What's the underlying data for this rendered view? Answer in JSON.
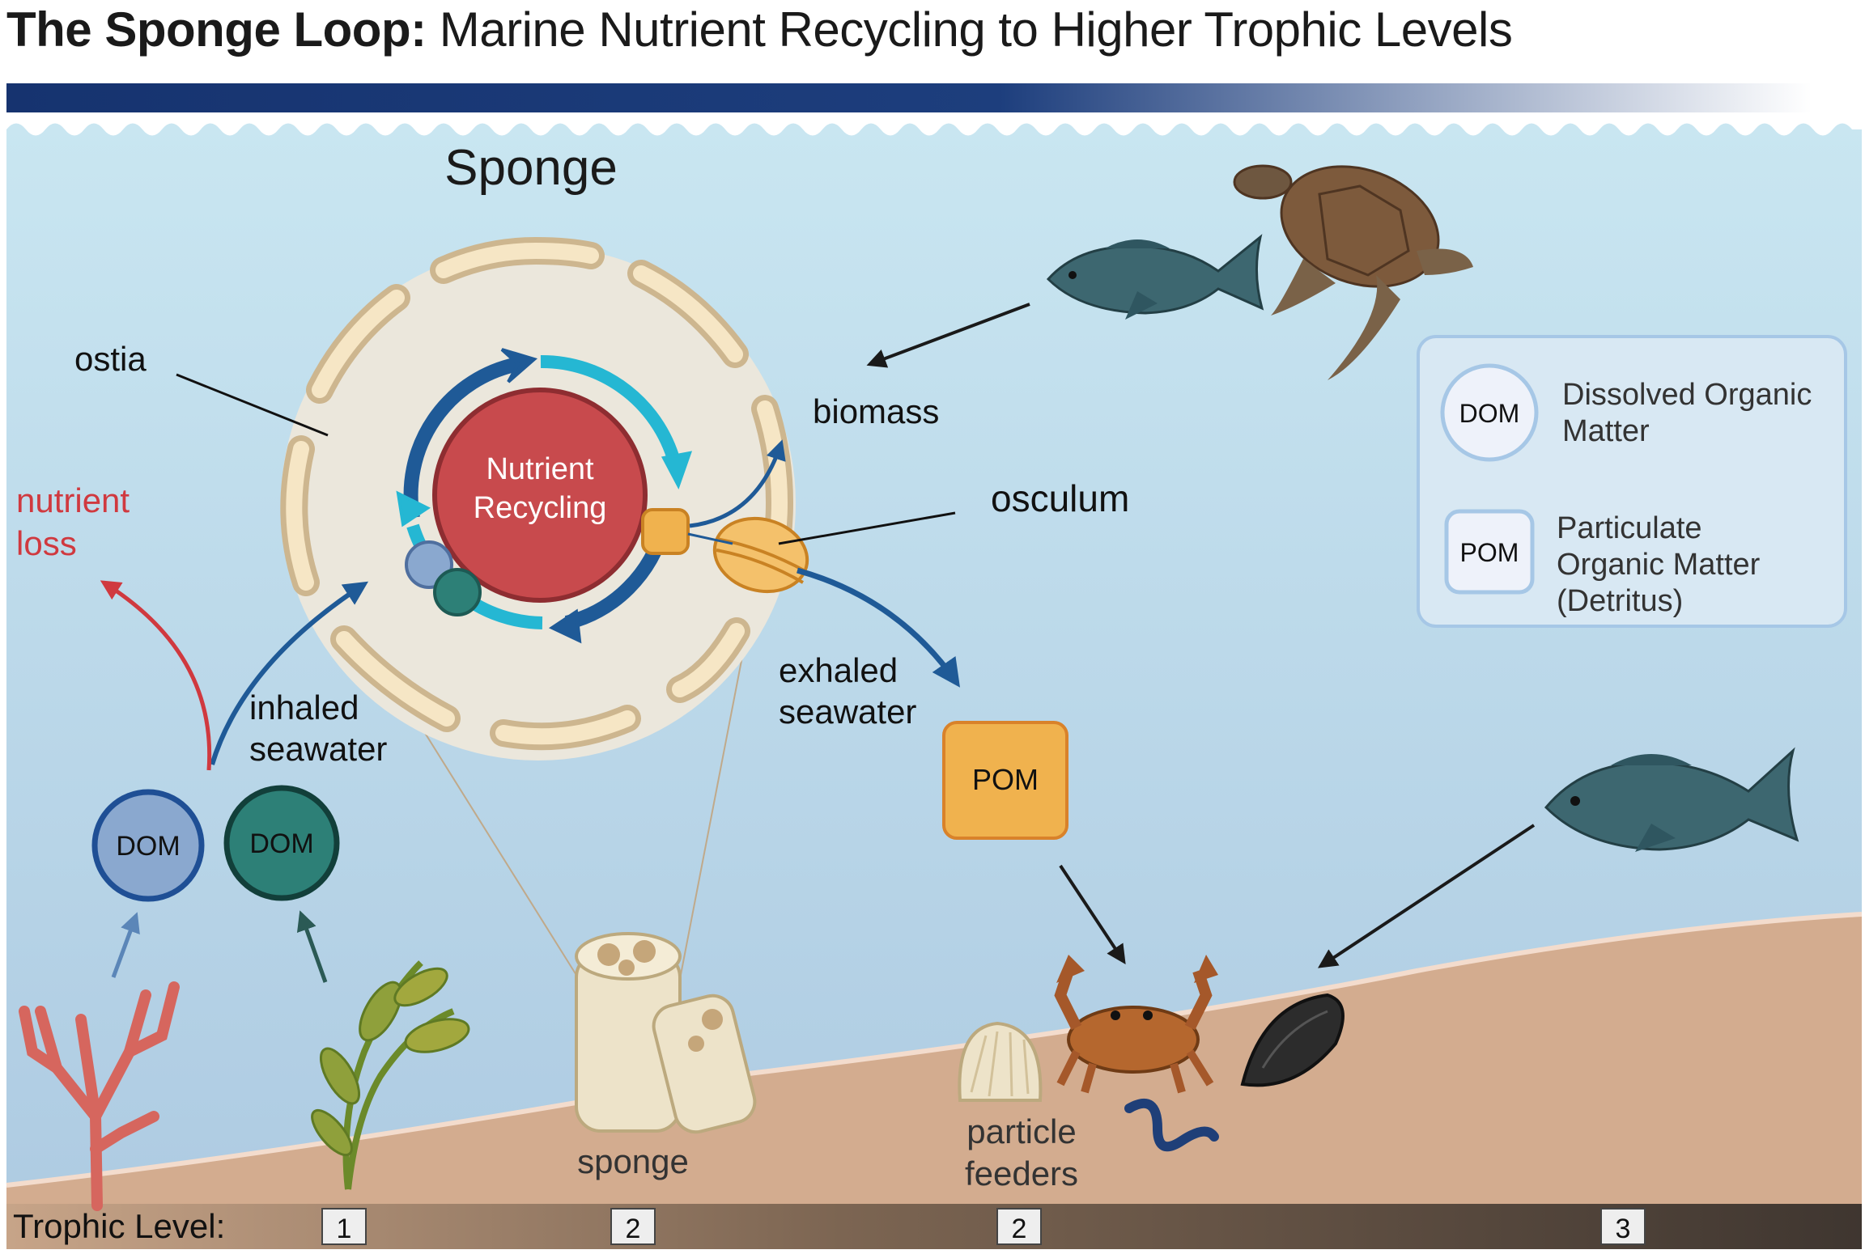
{
  "title": {
    "bold": "The Sponge Loop:",
    "rest": " Marine Nutrient Recycling to Higher Trophic Levels"
  },
  "sponge_diagram": {
    "heading": "Sponge",
    "center_line1": "Nutrient",
    "center_line2": "Recycling",
    "label_ostia": "ostia",
    "label_biomass": "biomass",
    "label_osculum": "osculum",
    "label_exhaled1": "exhaled",
    "label_exhaled2": "seawater",
    "label_inhaled1": "inhaled",
    "label_inhaled2": "seawater",
    "label_loss1": "nutrient",
    "label_loss2": "loss"
  },
  "nodes": {
    "dom_left": "DOM",
    "dom_right": "DOM",
    "pom": "POM"
  },
  "legend": {
    "dom_key": "DOM",
    "dom_desc1": "Dissolved Organic",
    "dom_desc2": "Matter",
    "pom_key": "POM",
    "pom_desc1": "Particulate",
    "pom_desc2": "Organic Matter",
    "pom_desc3": "(Detritus)"
  },
  "seafloor": {
    "sponge_label": "sponge",
    "feeders_line1": "particle",
    "feeders_line2": "feeders"
  },
  "trophic_bar": {
    "label": "Trophic Level:",
    "levels": [
      "1",
      "2",
      "2",
      "3"
    ]
  },
  "colors": {
    "water_top": "#c9e6f1",
    "water_bottom": "#b2cfe3",
    "sediment": "#d3ac8f",
    "nutrient_loss": "#d0393f",
    "nutrient_core": "#c84a4d",
    "pom_fill": "#f0b24e",
    "dom_blue": "#8aa8cf",
    "dom_teal": "#2d8077",
    "arrow_dark": "#1f5a97",
    "arrow_cyan": "#25b7d3"
  }
}
